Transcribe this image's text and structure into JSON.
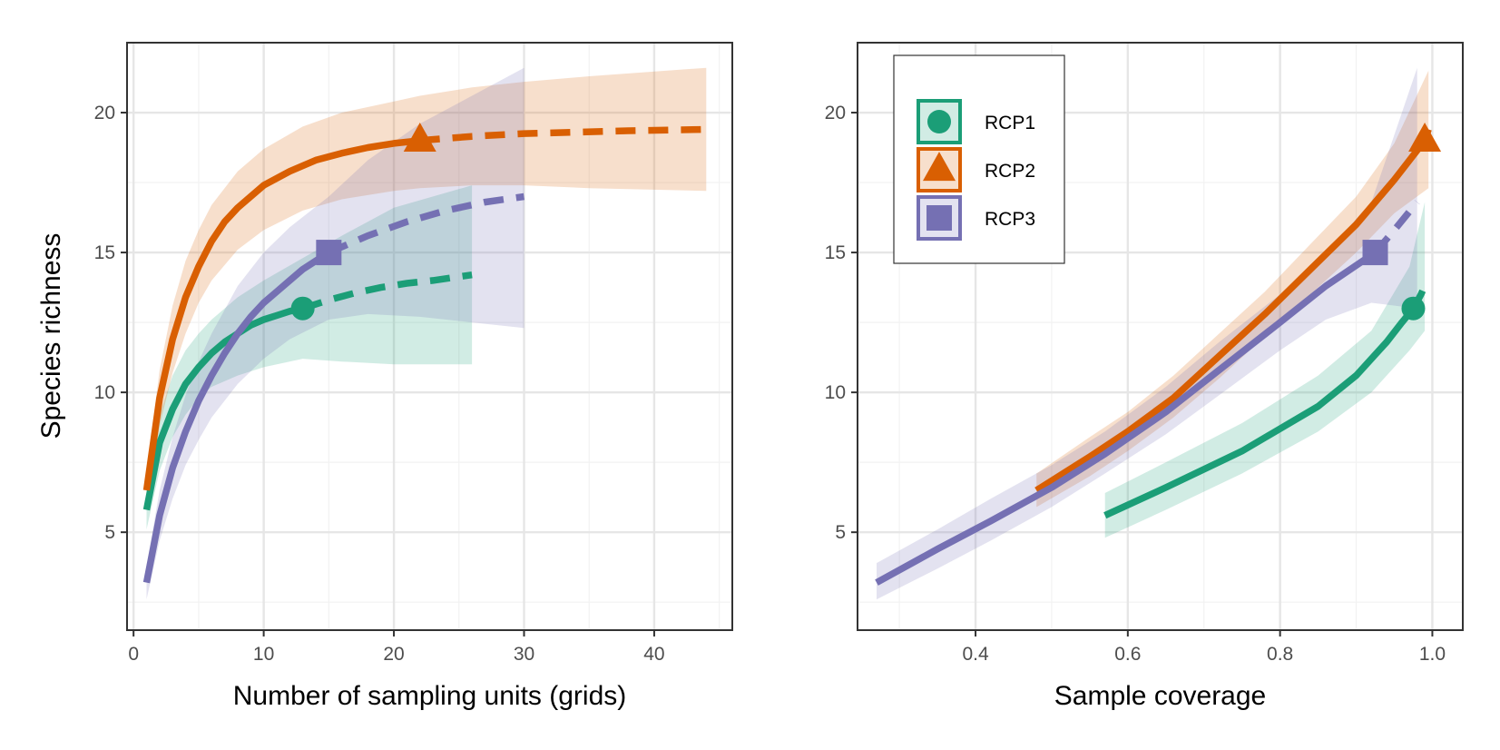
{
  "colors": {
    "RCP1": "#1b9e77",
    "RCP2": "#d95f02",
    "RCP3": "#7570b3",
    "grid_major": "#e6e6e6",
    "grid_minor": "#f2f2f2",
    "panel_border": "#333333"
  },
  "shared_ylabel": "Species richness",
  "legend": {
    "placement": "top-left inside right panel",
    "items": [
      {
        "label": "RCP1",
        "shape": "circle"
      },
      {
        "label": "RCP2",
        "shape": "triangle"
      },
      {
        "label": "RCP3",
        "shape": "square"
      }
    ]
  },
  "chart_data": [
    {
      "type": "line",
      "xlabel": "Number of sampling units (grids)",
      "ylabel": "Species richness",
      "xlim": [
        -0.5,
        46
      ],
      "ylim": [
        1.5,
        22.5
      ],
      "xticks": [
        0,
        10,
        20,
        30,
        40
      ],
      "xtick_labels": [
        "0",
        "10",
        "20",
        "30",
        "40"
      ],
      "yticks": [
        5,
        10,
        15,
        20
      ],
      "ytick_labels": [
        "5",
        "10",
        "15",
        "20"
      ],
      "grid": true,
      "series": [
        {
          "name": "RCP1",
          "observed": {
            "x": 13,
            "y": 13.0
          },
          "rarefaction": {
            "x": [
              1,
              2,
              3,
              4,
              5,
              6,
              7,
              8,
              9,
              10,
              11,
              12,
              13
            ],
            "y": [
              5.8,
              8.2,
              9.4,
              10.3,
              10.9,
              11.4,
              11.8,
              12.1,
              12.4,
              12.6,
              12.75,
              12.9,
              13.0
            ]
          },
          "extrapolation": {
            "x": [
              13,
              15,
              17,
              19,
              21,
              23,
              26
            ],
            "y": [
              13.0,
              13.3,
              13.55,
              13.75,
              13.9,
              14.0,
              14.2
            ]
          },
          "ci_lower": {
            "x": [
              1,
              2,
              3,
              4,
              5,
              6,
              8,
              10,
              13,
              16,
              20,
              26
            ],
            "y": [
              5.1,
              7.2,
              8.4,
              9.2,
              9.8,
              10.2,
              10.6,
              10.9,
              11.2,
              11.1,
              11.0,
              11.0
            ]
          },
          "ci_upper": {
            "x": [
              1,
              2,
              3,
              4,
              5,
              6,
              8,
              10,
              13,
              16,
              20,
              26
            ],
            "y": [
              6.6,
              9.2,
              10.6,
              11.5,
              12.1,
              12.6,
              13.4,
              14.0,
              14.8,
              15.6,
              16.6,
              17.4
            ]
          }
        },
        {
          "name": "RCP2",
          "observed": {
            "x": 22,
            "y": 19.0
          },
          "rarefaction": {
            "x": [
              1,
              2,
              3,
              4,
              5,
              6,
              7,
              8,
              10,
              12,
              14,
              16,
              18,
              20,
              22
            ],
            "y": [
              6.5,
              9.8,
              11.9,
              13.4,
              14.5,
              15.4,
              16.1,
              16.6,
              17.4,
              17.9,
              18.3,
              18.55,
              18.75,
              18.9,
              19.0
            ]
          },
          "extrapolation": {
            "x": [
              22,
              26,
              30,
              34,
              38,
              44
            ],
            "y": [
              19.0,
              19.15,
              19.25,
              19.3,
              19.35,
              19.4
            ]
          },
          "ci_lower": {
            "x": [
              1,
              2,
              3,
              4,
              5,
              6,
              8,
              10,
              13,
              16,
              20,
              22,
              26,
              30,
              35,
              44
            ],
            "y": [
              5.8,
              8.8,
              10.7,
              12.1,
              13.2,
              14.0,
              15.1,
              15.8,
              16.5,
              16.9,
              17.2,
              17.3,
              17.4,
              17.4,
              17.3,
              17.2
            ]
          },
          "ci_upper": {
            "x": [
              1,
              2,
              3,
              4,
              5,
              6,
              8,
              10,
              13,
              16,
              20,
              22,
              26,
              30,
              35,
              44
            ],
            "y": [
              7.2,
              10.8,
              13.1,
              14.7,
              15.8,
              16.7,
              17.9,
              18.7,
              19.5,
              20.0,
              20.4,
              20.6,
              20.9,
              21.1,
              21.3,
              21.6
            ]
          }
        },
        {
          "name": "RCP3",
          "observed": {
            "x": 15,
            "y": 15.0
          },
          "rarefaction": {
            "x": [
              1,
              2,
              3,
              4,
              5,
              6,
              7,
              8,
              9,
              10,
              11,
              12,
              13,
              14,
              15
            ],
            "y": [
              3.2,
              5.6,
              7.3,
              8.6,
              9.7,
              10.6,
              11.4,
              12.1,
              12.7,
              13.2,
              13.6,
              14.0,
              14.4,
              14.7,
              15.0
            ]
          },
          "extrapolation": {
            "x": [
              15,
              18,
              21,
              24,
              27,
              30
            ],
            "y": [
              15.0,
              15.6,
              16.1,
              16.5,
              16.8,
              17.0
            ]
          },
          "ci_lower": {
            "x": [
              1,
              2,
              3,
              4,
              5,
              6,
              8,
              10,
              12,
              15,
              18,
              22,
              26,
              30
            ],
            "y": [
              2.6,
              4.7,
              6.2,
              7.4,
              8.3,
              9.1,
              10.3,
              11.2,
              11.9,
              12.6,
              12.8,
              12.7,
              12.5,
              12.3
            ]
          },
          "ci_upper": {
            "x": [
              1,
              2,
              3,
              4,
              5,
              6,
              8,
              10,
              12,
              15,
              18,
              22,
              26,
              30
            ],
            "y": [
              3.8,
              6.5,
              8.4,
              9.9,
              11.1,
              12.1,
              13.8,
              15.0,
              15.9,
              17.0,
              18.3,
              19.6,
              20.6,
              21.6
            ]
          }
        }
      ]
    },
    {
      "type": "line",
      "xlabel": "Sample coverage",
      "ylabel": "Species richness",
      "xlim": [
        0.245,
        1.04
      ],
      "ylim": [
        1.5,
        22.5
      ],
      "xticks": [
        0.4,
        0.6,
        0.8,
        1.0
      ],
      "xtick_labels": [
        "0.4",
        "0.6",
        "0.8",
        "1.0"
      ],
      "yticks": [
        5,
        10,
        15,
        20
      ],
      "ytick_labels": [
        "5",
        "10",
        "15",
        "20"
      ],
      "grid": true,
      "series": [
        {
          "name": "RCP1",
          "observed": {
            "x": 0.975,
            "y": 13.0
          },
          "rarefaction": {
            "x": [
              0.57,
              0.65,
              0.75,
              0.85,
              0.9,
              0.94,
              0.96,
              0.975
            ],
            "y": [
              5.6,
              6.6,
              7.9,
              9.5,
              10.6,
              11.8,
              12.5,
              13.0
            ]
          },
          "extrapolation": {
            "x": [
              0.975,
              0.985,
              0.99
            ],
            "y": [
              13.0,
              13.5,
              13.8
            ]
          },
          "ci_lower": {
            "x": [
              0.57,
              0.65,
              0.75,
              0.85,
              0.92,
              0.97,
              0.99
            ],
            "y": [
              4.8,
              5.8,
              7.1,
              8.6,
              10.0,
              11.5,
              12.2
            ]
          },
          "ci_upper": {
            "x": [
              0.57,
              0.65,
              0.75,
              0.85,
              0.92,
              0.97,
              0.99
            ],
            "y": [
              6.4,
              7.5,
              8.9,
              10.6,
              12.2,
              14.5,
              16.8
            ]
          }
        },
        {
          "name": "RCP2",
          "observed": {
            "x": 0.99,
            "y": 19.0
          },
          "rarefaction": {
            "x": [
              0.48,
              0.55,
              0.6,
              0.66,
              0.72,
              0.78,
              0.84,
              0.9,
              0.95,
              0.99
            ],
            "y": [
              6.5,
              7.7,
              8.6,
              9.8,
              11.3,
              12.8,
              14.4,
              16.0,
              17.6,
              19.0
            ]
          },
          "extrapolation": {
            "x": [
              0.99,
              0.995
            ],
            "y": [
              19.0,
              19.4
            ]
          },
          "ci_lower": {
            "x": [
              0.48,
              0.55,
              0.6,
              0.66,
              0.72,
              0.78,
              0.84,
              0.9,
              0.95,
              0.995
            ],
            "y": [
              5.9,
              7.0,
              7.9,
              9.1,
              10.5,
              12.0,
              13.5,
              15.0,
              16.4,
              17.3
            ]
          },
          "ci_upper": {
            "x": [
              0.48,
              0.55,
              0.6,
              0.66,
              0.72,
              0.78,
              0.84,
              0.9,
              0.95,
              0.995
            ],
            "y": [
              7.1,
              8.4,
              9.3,
              10.6,
              12.1,
              13.6,
              15.3,
              17.0,
              18.9,
              21.5
            ]
          }
        },
        {
          "name": "RCP3",
          "observed": {
            "x": 0.925,
            "y": 15.0
          },
          "rarefaction": {
            "x": [
              0.27,
              0.35,
              0.42,
              0.5,
              0.57,
              0.65,
              0.72,
              0.8,
              0.86,
              0.925
            ],
            "y": [
              3.2,
              4.4,
              5.4,
              6.6,
              7.8,
              9.3,
              10.8,
              12.5,
              13.8,
              15.0
            ]
          },
          "extrapolation": {
            "x": [
              0.925,
              0.95,
              0.98
            ],
            "y": [
              15.0,
              15.8,
              16.8
            ]
          },
          "ci_lower": {
            "x": [
              0.27,
              0.35,
              0.42,
              0.5,
              0.57,
              0.65,
              0.72,
              0.8,
              0.86,
              0.92,
              0.98
            ],
            "y": [
              2.6,
              3.7,
              4.7,
              5.9,
              7.1,
              8.5,
              9.9,
              11.5,
              12.6,
              13.2,
              13.0
            ]
          },
          "ci_upper": {
            "x": [
              0.27,
              0.35,
              0.42,
              0.5,
              0.57,
              0.65,
              0.72,
              0.8,
              0.86,
              0.92,
              0.98
            ],
            "y": [
              3.9,
              5.1,
              6.2,
              7.4,
              8.6,
              10.2,
              11.8,
              13.5,
              15.0,
              16.8,
              21.6
            ]
          }
        }
      ]
    }
  ]
}
